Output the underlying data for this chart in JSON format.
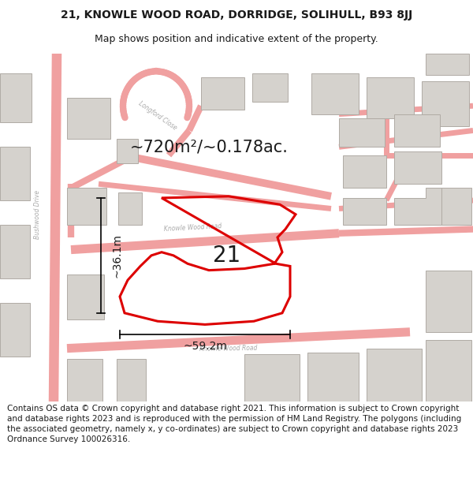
{
  "title_line1": "21, KNOWLE WOOD ROAD, DORRIDGE, SOLIHULL, B93 8JJ",
  "title_line2": "Map shows position and indicative extent of the property.",
  "area_label": "~720m²/~0.178ac.",
  "width_label": "~59.2m",
  "height_label": "~36.1m",
  "number_label": "21",
  "footer_text": "Contains OS data © Crown copyright and database right 2021. This information is subject to Crown copyright and database rights 2023 and is reproduced with the permission of HM Land Registry. The polygons (including the associated geometry, namely x, y co-ordinates) are subject to Crown copyright and database rights 2023 Ordnance Survey 100026316.",
  "bg_color": "#f2f0ed",
  "road_color": "#f0a0a0",
  "building_color": "#d5d2cd",
  "highlight_color": "#dd0000",
  "text_color": "#1a1a1a",
  "road_label_color": "#aaaaaa",
  "title_fontsize": 10,
  "subtitle_fontsize": 9,
  "footer_fontsize": 7.5,
  "area_fontsize": 15,
  "dim_fontsize": 10,
  "number_fontsize": 20
}
